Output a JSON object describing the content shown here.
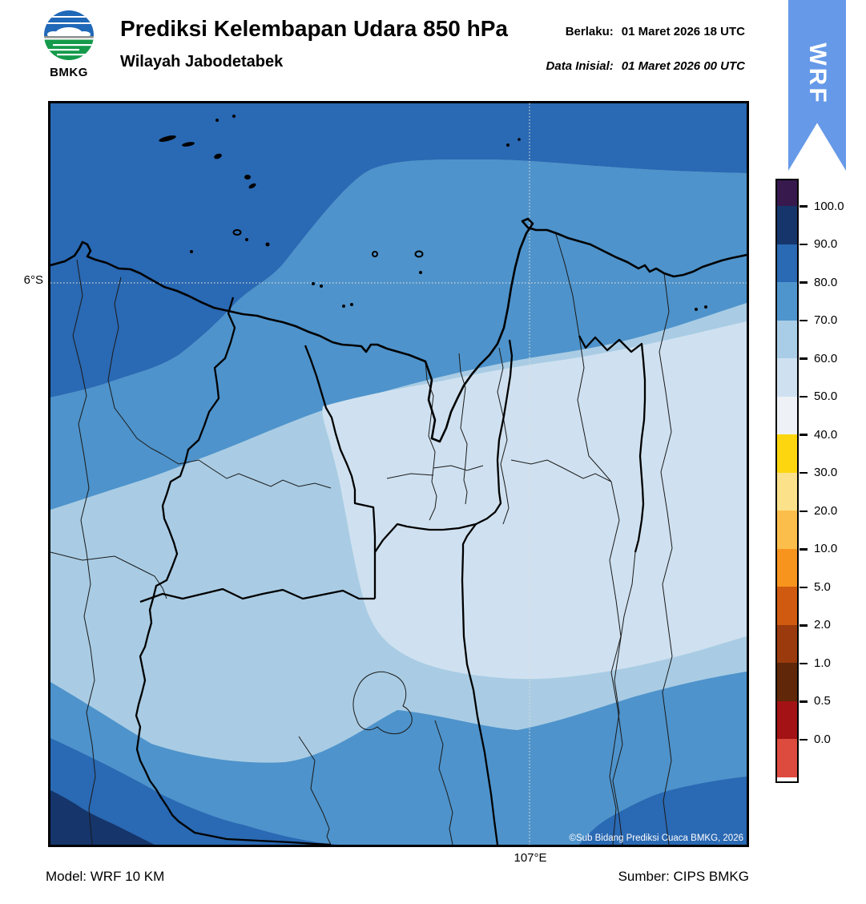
{
  "header": {
    "logo": {
      "text": "BMKG"
    },
    "title": "Prediksi Kelembapan Udara 850 hPa",
    "subtitle": "Wilayah Jabodetabek",
    "valid": {
      "label": "Berlaku:",
      "value": "01 Maret 2026 18 UTC"
    },
    "initial": {
      "label": "Data Inisial:",
      "value": "01 Maret 2026 00 UTC"
    },
    "ribbon": {
      "text": "WRF",
      "color": "#6699e8"
    }
  },
  "map": {
    "lat_tick": "6°S",
    "lon_tick": "107°E",
    "copyright": "©Sub Bidang Prediksi Cuaca BMKG, 2026",
    "fills": {
      "rh_90_100": "#15356b",
      "rh_80_90": "#2a69b3",
      "rh_70_80": "#4e93cb",
      "rh_60_70": "#a9cce4",
      "rh_50_60": "#cfe1f0"
    },
    "lines": {
      "coast": "#000000",
      "admin": "#1a1a1a",
      "grid": "#d8d8d8"
    }
  },
  "colorbar": {
    "levels": [
      "100.0",
      "90.0",
      "80.0",
      "70.0",
      "60.0",
      "50.0",
      "40.0",
      "30.0",
      "20.0",
      "10.0",
      "5.0",
      "2.0",
      "1.0",
      "0.5",
      "0.0"
    ],
    "colors": [
      "#37194e",
      "#15356b",
      "#2a69b3",
      "#4f95cd",
      "#a9cde6",
      "#cfe1f1",
      "#eef2f6",
      "#fdd60f",
      "#fbe28a",
      "#fcbe4b",
      "#f7941e",
      "#d05a10",
      "#9a3a0d",
      "#602708",
      "#a31315",
      "#dd4a3e"
    ]
  },
  "footer": {
    "model": "Model: WRF 10 KM",
    "source": "Sumber: CIPS BMKG"
  }
}
